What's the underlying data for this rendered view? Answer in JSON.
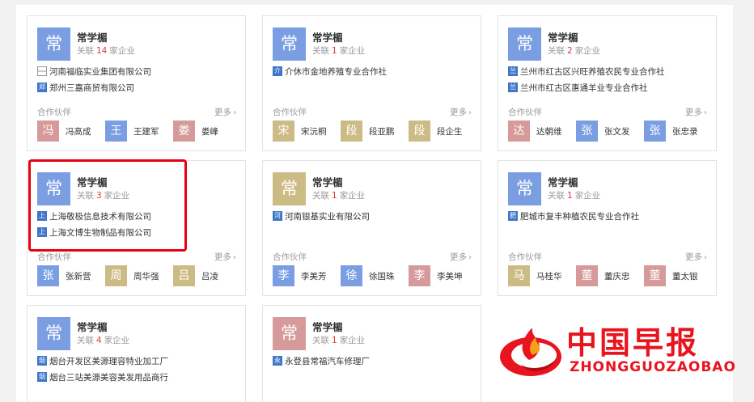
{
  "colors": {
    "blue": "#7b9ee3",
    "tan": "#cdbb85",
    "pink": "#d69a9a",
    "logo_blue": "#3f76c9",
    "highlight": "#e60012",
    "watermark": "#e8141e"
  },
  "labels": {
    "assoc_prefix": "关联",
    "assoc_suffix": "家企业",
    "partners_title": "合作伙伴",
    "more": "更多",
    "more_icon": "›"
  },
  "cards": [
    {
      "avatar_char": "常",
      "name": "常学楣",
      "count": "14",
      "companies": [
        {
          "logo": "",
          "name": "河南福临实业集团有限公司"
        },
        {
          "logo": "郑",
          "name": "郑州三嘉商贸有限公司"
        }
      ],
      "partners": [
        {
          "char": "冯",
          "name": "冯高成"
        },
        {
          "char": "王",
          "name": "王建军"
        },
        {
          "char": "娄",
          "name": "娄峰"
        }
      ]
    },
    {
      "avatar_char": "常",
      "name": "常学楣",
      "count": "1",
      "companies": [
        {
          "logo": "介",
          "name": "介休市金地养殖专业合作社"
        }
      ],
      "partners": [
        {
          "char": "宋",
          "name": "宋沅桐"
        },
        {
          "char": "段",
          "name": "段亚鹏"
        },
        {
          "char": "段",
          "name": "段企生"
        }
      ]
    },
    {
      "avatar_char": "常",
      "name": "常学楣",
      "count": "2",
      "companies": [
        {
          "logo": "兰",
          "name": "兰州市红古区兴旺养殖农民专业合作社"
        },
        {
          "logo": "兰",
          "name": "兰州市红古区惠通羊业专业合作社"
        }
      ],
      "partners": [
        {
          "char": "达",
          "name": "达朝维"
        },
        {
          "char": "张",
          "name": "张文发"
        },
        {
          "char": "张",
          "name": "张忠录"
        }
      ]
    },
    {
      "avatar_char": "常",
      "name": "常学楣",
      "count": "3",
      "companies": [
        {
          "logo": "上",
          "name": "上海敬极信息技术有限公司"
        },
        {
          "logo": "上",
          "name": "上海文博生物制品有限公司"
        }
      ],
      "partners": [
        {
          "char": "张",
          "name": "张新营"
        },
        {
          "char": "周",
          "name": "周华强"
        },
        {
          "char": "吕",
          "name": "吕凌"
        }
      ]
    },
    {
      "avatar_char": "常",
      "name": "常学楣",
      "count": "1",
      "companies": [
        {
          "logo": "河",
          "name": "河南银基实业有限公司"
        }
      ],
      "partners": [
        {
          "char": "李",
          "name": "李美芳"
        },
        {
          "char": "徐",
          "name": "徐国珠"
        },
        {
          "char": "李",
          "name": "李美坤"
        }
      ]
    },
    {
      "avatar_char": "常",
      "name": "常学楣",
      "count": "1",
      "companies": [
        {
          "logo": "肥",
          "name": "肥城市复丰种植农民专业合作社"
        }
      ],
      "partners": [
        {
          "char": "马",
          "name": "马桂华"
        },
        {
          "char": "董",
          "name": "董庆忠"
        },
        {
          "char": "董",
          "name": "董太银"
        }
      ]
    },
    {
      "avatar_char": "常",
      "name": "常学楣",
      "count": "4",
      "companies": [
        {
          "logo": "烟",
          "name": "烟台开发区美源理容特业加工厂"
        },
        {
          "logo": "烟",
          "name": "烟台三站美源美容美发用品商行"
        }
      ],
      "partners": []
    },
    {
      "avatar_char": "常",
      "name": "常学楣",
      "count": "1",
      "companies": [
        {
          "logo": "永",
          "name": "永登县常福汽车修理厂"
        }
      ],
      "partners": []
    }
  ],
  "watermark": {
    "title": "中国早报",
    "subtitle": "ZHONGGUOZAOBAO"
  }
}
